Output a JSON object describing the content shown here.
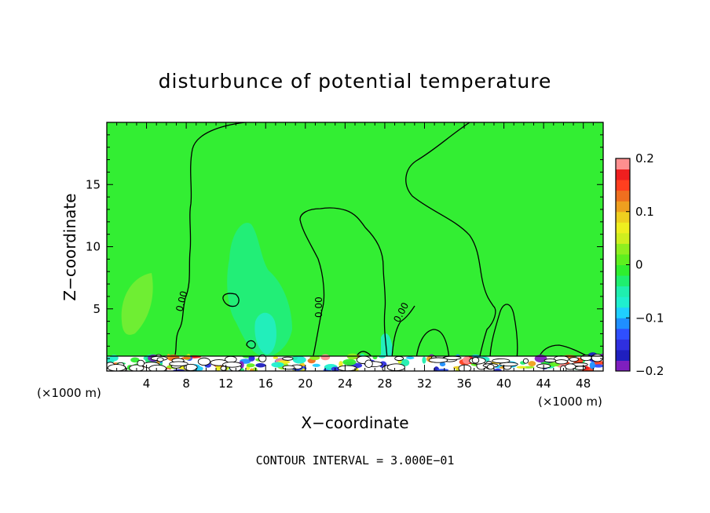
{
  "chart_data": {
    "type": "heatmap",
    "title": "disturbunce of potential temperature",
    "xlabel": "X−coordinate",
    "ylabel": "Z−coordinate",
    "x_unit_label": "(×1000 m)",
    "footer": "CONTOUR INTERVAL = 3.000E−01",
    "xlim": [
      0,
      50
    ],
    "ylim": [
      0,
      20
    ],
    "x_ticks": [
      4,
      8,
      12,
      16,
      20,
      24,
      28,
      32,
      36,
      40,
      44,
      48
    ],
    "y_ticks": [
      5,
      10,
      15
    ],
    "colorbar": {
      "range": [
        -0.2,
        0.2
      ],
      "ticks": [
        {
          "value": 0.2,
          "label": "0.2"
        },
        {
          "value": 0.1,
          "label": "0.1"
        },
        {
          "value": 0.0,
          "label": "0"
        },
        {
          "value": -0.1,
          "label": "−0.1"
        },
        {
          "value": -0.2,
          "label": "−0.2"
        }
      ],
      "colors": [
        "#7f1fbf",
        "#1f1fbf",
        "#2f2fdf",
        "#2f4fff",
        "#1f8fff",
        "#1fcfff",
        "#1fefcf",
        "#1fefaf",
        "#1fef6f",
        "#2fef2f",
        "#5fef1f",
        "#8fef1f",
        "#cfef1f",
        "#efef1f",
        "#efcf1f",
        "#ef9f1f",
        "#ef6f1f",
        "#ff3f1f",
        "#ef1f1f",
        "#ff8f8f"
      ]
    },
    "field_background": "#33ee33",
    "contour_label": "0.00",
    "grid": false,
    "legend": "colorbar right"
  }
}
